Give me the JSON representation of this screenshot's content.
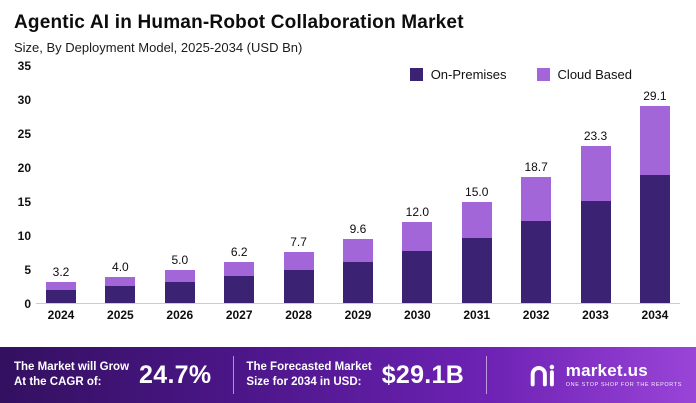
{
  "header": {
    "title": "Agentic AI in Human-Robot Collaboration Market",
    "subtitle": "Size, By Deployment Model, 2025-2034 (USD Bn)"
  },
  "chart_data": {
    "type": "bar",
    "stacked": true,
    "title": "Agentic AI in Human-Robot Collaboration Market Size, By Deployment Model, 2025-2034 (USD Bn)",
    "categories": [
      "2024",
      "2025",
      "2026",
      "2027",
      "2028",
      "2029",
      "2030",
      "2031",
      "2032",
      "2033",
      "2034"
    ],
    "series": [
      {
        "name": "On-Premises",
        "color": "#3b2272",
        "values": [
          2.1,
          2.6,
          3.3,
          4.1,
          5.0,
          6.2,
          7.8,
          9.7,
          12.2,
          15.2,
          19.0
        ]
      },
      {
        "name": "Cloud Based",
        "color": "#a266d8",
        "values": [
          1.1,
          1.4,
          1.7,
          2.1,
          2.7,
          3.4,
          4.2,
          5.3,
          6.5,
          8.1,
          10.1
        ]
      }
    ],
    "totals": [
      3.2,
      4.0,
      5.0,
      6.2,
      7.7,
      9.6,
      12.0,
      15.0,
      18.7,
      23.3,
      29.1
    ],
    "xlabel": "",
    "ylabel": "",
    "ylim": [
      0,
      35
    ],
    "yticks": [
      0,
      5,
      10,
      15,
      20,
      25,
      30,
      35
    ],
    "grid": false,
    "legend_position": "top-right",
    "value_labels": "above-bars"
  },
  "banner": {
    "cagr_line1": "The Market will Grow",
    "cagr_line2": "At the CAGR of:",
    "cagr_value": "24.7%",
    "forecast_line1": "The Forecasted Market",
    "forecast_line2": "Size for 2034 in USD:",
    "forecast_value": "$29.1B",
    "brand": "market.us",
    "brand_tagline": "ONE STOP SHOP FOR THE REPORTS"
  },
  "colors": {
    "on_premises": "#3b2272",
    "cloud_based": "#a266d8",
    "banner_start": "#331060",
    "banner_end": "#9a44d8"
  }
}
